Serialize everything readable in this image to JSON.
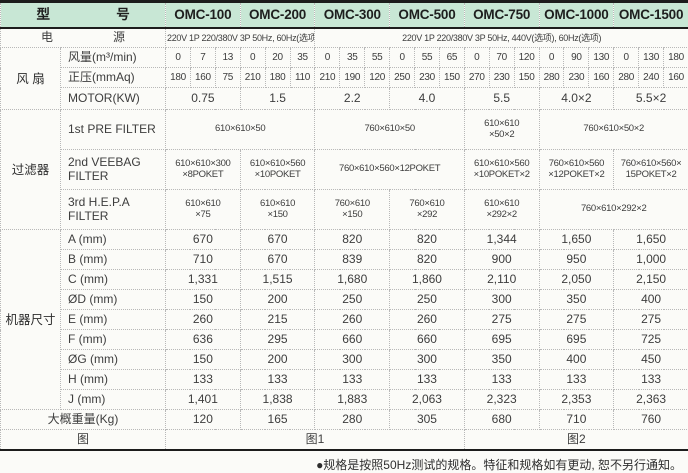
{
  "colors": {
    "header_bg": "#c8e7d5",
    "grid_border": "#b8b8b8",
    "strong_line": "#1c1c1c",
    "text": "#3d3d3d"
  },
  "header": {
    "model_label": "型　　　　　号",
    "models": [
      "OMC-100",
      "OMC-200",
      "OMC-300",
      "OMC-500",
      "OMC-750",
      "OMC-1000",
      "OMC-1500"
    ]
  },
  "power": {
    "label": "电　　　　　源",
    "spec_omc100_200": "220V 1P 220/380V 3P 50Hz, 60Hz(选项)",
    "spec_omc300_1500": "220V 1P 220/380V 3P 50Hz, 440V(选项), 60Hz(选项)"
  },
  "fan": {
    "group_label": "风 扇",
    "airflow": {
      "label": "风量(m³/min)",
      "values": [
        "0",
        "7",
        "13",
        "0",
        "20",
        "35",
        "0",
        "35",
        "55",
        "0",
        "55",
        "65",
        "0",
        "70",
        "120",
        "0",
        "90",
        "130",
        "0",
        "130",
        "180"
      ]
    },
    "pressure": {
      "label": "正压(mmAq)",
      "values": [
        "180",
        "160",
        "75",
        "210",
        "180",
        "110",
        "210",
        "190",
        "120",
        "250",
        "230",
        "150",
        "270",
        "230",
        "150",
        "280",
        "230",
        "160",
        "280",
        "240",
        "160"
      ]
    },
    "motor": {
      "label": "MOTOR(KW)",
      "values": [
        "0.75",
        "1.5",
        "2.2",
        "4.0",
        "5.5",
        "4.0×2",
        "5.5×2"
      ]
    }
  },
  "filters": {
    "group_label": "过滤器",
    "rows": [
      {
        "label": "1st PRE FILTER",
        "cells": [
          "610×610×50",
          "760×610×50",
          "610×610\n×50×2",
          "760×610×50×2"
        ]
      },
      {
        "label": "2nd VEEBAG\nFILTER",
        "cells": [
          "610×610×300\n×8POKET",
          "610×610×560\n×10POKET",
          "760×610×560×12POKET",
          "610×610×560\n×10POKET×2",
          "760×610×560\n×12POKET×2",
          "760×610×560×\n15POKET×2"
        ]
      },
      {
        "label": "3rd H.E.P.A\nFILTER",
        "cells": [
          "610×610\n×75",
          "610×610\n×150",
          "760×610\n×150",
          "760×610\n×292",
          "610×610\n×292×2",
          "760×610×292×2"
        ]
      }
    ]
  },
  "dims": {
    "group_label": "机器尺寸",
    "rows": [
      {
        "label": "A (mm)",
        "values": [
          "670",
          "670",
          "820",
          "820",
          "1,344",
          "1,650",
          "1,650"
        ]
      },
      {
        "label": "B (mm)",
        "values": [
          "710",
          "670",
          "839",
          "820",
          "900",
          "950",
          "1,000"
        ]
      },
      {
        "label": "C (mm)",
        "values": [
          "1,331",
          "1,515",
          "1,680",
          "1,860",
          "2,110",
          "2,050",
          "2,150"
        ]
      },
      {
        "label": "ØD (mm)",
        "values": [
          "150",
          "200",
          "250",
          "250",
          "300",
          "350",
          "400"
        ]
      },
      {
        "label": "E (mm)",
        "values": [
          "260",
          "215",
          "260",
          "260",
          "275",
          "275",
          "275"
        ]
      },
      {
        "label": "F (mm)",
        "values": [
          "636",
          "295",
          "660",
          "660",
          "695",
          "695",
          "725"
        ]
      },
      {
        "label": "ØG (mm)",
        "values": [
          "150",
          "200",
          "300",
          "300",
          "350",
          "400",
          "450"
        ]
      },
      {
        "label": "H (mm)",
        "values": [
          "133",
          "133",
          "133",
          "133",
          "133",
          "133",
          "133"
        ]
      },
      {
        "label": "J (mm)",
        "values": [
          "1,401",
          "1,838",
          "1,883",
          "2,063",
          "2,323",
          "2,353",
          "2,363"
        ]
      }
    ]
  },
  "weight": {
    "label": "大概重量(Kg)",
    "values": [
      "120",
      "165",
      "280",
      "305",
      "680",
      "710",
      "760"
    ]
  },
  "diagram": {
    "label": "图",
    "fig1": "图1",
    "fig2": "图2"
  },
  "footer_note": "●规格是按照50Hz测试的规格。特征和规格如有更动, 恕不另行通知。"
}
